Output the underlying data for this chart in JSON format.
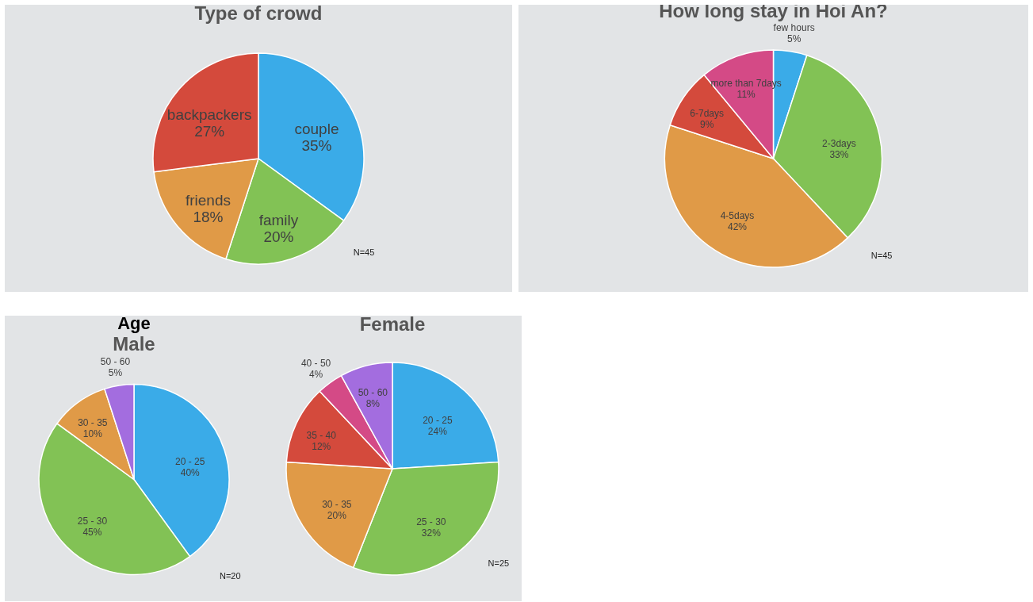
{
  "chart_data": [
    {
      "type": "pie",
      "title": "Type of crowd",
      "categories": [
        "couple",
        "family",
        "friends",
        "backpackers"
      ],
      "values": [
        35,
        20,
        18,
        27
      ],
      "value_labels": [
        "35%",
        "20%",
        "18%",
        "27%"
      ],
      "colors": [
        "#3aabe8",
        "#82c255",
        "#e09a47",
        "#d44a3c"
      ],
      "annotations": [
        "N=45"
      ]
    },
    {
      "type": "pie",
      "title": "How long stay in Hoi An?",
      "categories": [
        "few hours",
        "2-3days",
        "4-5days",
        "6-7days",
        "more than 7days"
      ],
      "values": [
        5,
        33,
        42,
        9,
        11
      ],
      "value_labels": [
        "5%",
        "33%",
        "42%",
        "9%",
        "11%"
      ],
      "colors": [
        "#3aabe8",
        "#82c255",
        "#e09a47",
        "#d44a3c",
        "#d44a86"
      ],
      "annotations": [
        "N=45"
      ]
    },
    {
      "type": "pie",
      "title": "Age",
      "subtitle": "Male",
      "categories": [
        "20 - 25",
        "25 - 30",
        "30 - 35",
        "50 - 60"
      ],
      "values": [
        40,
        45,
        10,
        5
      ],
      "value_labels": [
        "40%",
        "45%",
        "10%",
        "5%"
      ],
      "colors": [
        "#3aabe8",
        "#82c255",
        "#e09a47",
        "#a36ddf"
      ],
      "annotations": [
        "N=20"
      ]
    },
    {
      "type": "pie",
      "subtitle": "Female",
      "categories": [
        "20 - 25",
        "25 - 30",
        "30 - 35",
        "35 - 40",
        "40 - 50",
        "50 - 60"
      ],
      "values": [
        24,
        32,
        20,
        12,
        4,
        8
      ],
      "value_labels": [
        "24%",
        "32%",
        "20%",
        "12%",
        "4%",
        "8%"
      ],
      "colors": [
        "#3aabe8",
        "#82c255",
        "#e09a47",
        "#d44a3c",
        "#d44a86",
        "#a36ddf"
      ],
      "annotations": [
        "N=25"
      ]
    }
  ]
}
